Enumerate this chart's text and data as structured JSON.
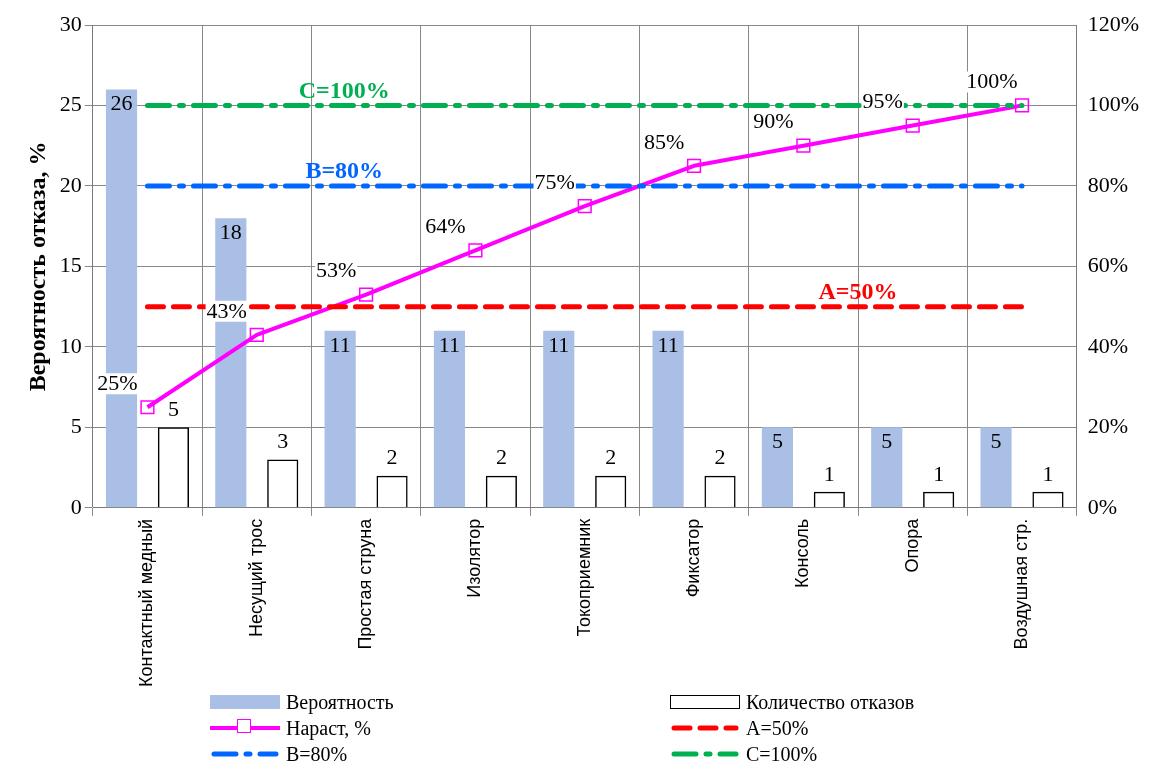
{
  "chart_data": {
    "type": "bar",
    "ylabel": "Вероятность отказа, %",
    "categories": [
      "Контактный медный",
      "Несущий трос",
      "Простая струна",
      "Изолятор",
      "Токоприемник",
      "Фиксатор",
      "Консоль",
      "Опора",
      "Воздушная стр."
    ],
    "series": [
      {
        "name": "Вероятность",
        "color": "#a9bfe6",
        "values": [
          26,
          18,
          11,
          11,
          11,
          11,
          5,
          5,
          5
        ],
        "value_labels": [
          "26",
          "18",
          "11",
          "11",
          "11",
          "11",
          "5",
          "5",
          "5"
        ]
      },
      {
        "name": "Количество отказов",
        "color": "#000000",
        "values": [
          5,
          3,
          2,
          2,
          2,
          2,
          1,
          1,
          1
        ],
        "value_labels": [
          "5",
          "3",
          "2",
          "2",
          "2",
          "2",
          "1",
          "1",
          "1"
        ]
      },
      {
        "name": "Нараст, %",
        "type": "line",
        "axis": "y2",
        "color": "#ff00ff",
        "marker": "square",
        "values": [
          25,
          43,
          53,
          64,
          75,
          85,
          90,
          95,
          100
        ],
        "value_labels": [
          "25%",
          "43%",
          "53%",
          "64%",
          "75%",
          "85%",
          "90%",
          "95%",
          "100%"
        ]
      }
    ],
    "ylim": [
      0,
      30
    ],
    "yticks": [
      0,
      5,
      10,
      15,
      20,
      25,
      30
    ],
    "y2lim": [
      0,
      120
    ],
    "y2ticks": [
      {
        "value": 0,
        "label": "0%"
      },
      {
        "value": 20,
        "label": "20%"
      },
      {
        "value": 40,
        "label": "40%"
      },
      {
        "value": 60,
        "label": "60%"
      },
      {
        "value": 80,
        "label": "80%"
      },
      {
        "value": 100,
        "label": "100%"
      },
      {
        "value": 120,
        "label": "120%"
      }
    ],
    "ref_lines": [
      {
        "axis": "y2",
        "value": 50,
        "label": "A=50%",
        "color": "#ff0000",
        "line_style": "dashed"
      },
      {
        "axis": "y2",
        "value": 80,
        "label": "B=80%",
        "color": "#0066ff",
        "line_style": "dashdot"
      },
      {
        "axis": "y2",
        "value": 100,
        "label": "C=100%",
        "color": "#00b050",
        "line_style": "dashdot"
      }
    ],
    "grid": true,
    "legend": "bottom"
  }
}
